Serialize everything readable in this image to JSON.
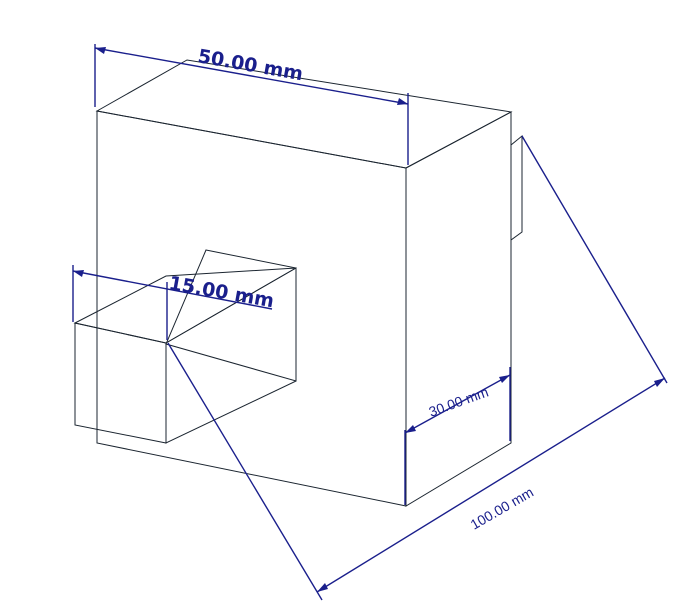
{
  "model": {
    "colors": {
      "front": "#67a7d6",
      "top": "#426b85",
      "side": "#4e7da1",
      "edge": "#1b2530",
      "dimension": "#1a1f8c",
      "background": "#ffffff"
    }
  },
  "dimensions": {
    "top_width": "50.00 mm",
    "peg_width": "15.00 mm",
    "side_depth": "30.00 mm",
    "diagonal_length": "100.00 mm"
  }
}
